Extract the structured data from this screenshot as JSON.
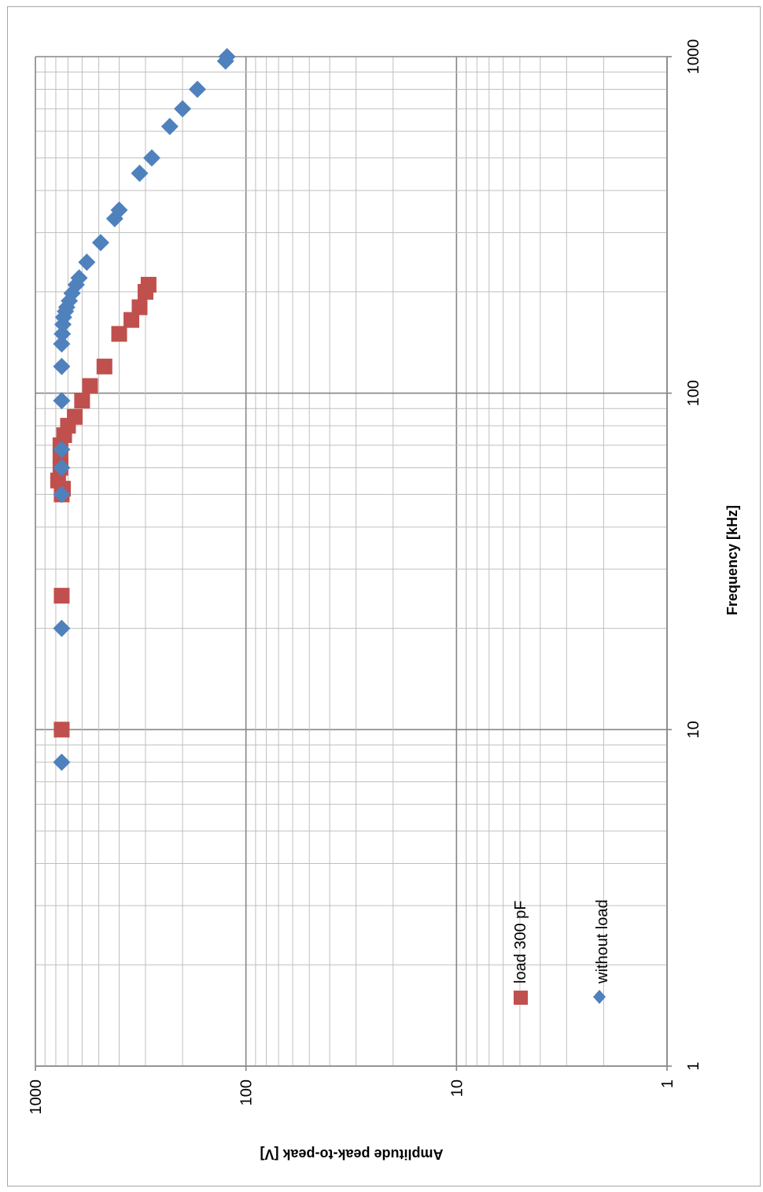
{
  "chart_data": {
    "type": "scatter",
    "orientation": "rotated-90-clockwise",
    "xlabel": "Frequency [kHz]",
    "ylabel": "Amplitude peak-to-peak [V]",
    "x_scale": "log",
    "y_scale": "log",
    "xlim": [
      1,
      1000
    ],
    "ylim": [
      1,
      1000
    ],
    "x_ticks": [
      "1",
      "10",
      "100",
      "1000"
    ],
    "y_ticks": [
      "1000",
      "100",
      "10",
      "1"
    ],
    "grid": true,
    "legend_position": "bottom-left",
    "series": [
      {
        "name": "load 300 pF",
        "marker": "square",
        "color": "#c0504d",
        "points": [
          {
            "x": 10,
            "y": 750
          },
          {
            "x": 25,
            "y": 750
          },
          {
            "x": 50,
            "y": 750
          },
          {
            "x": 52,
            "y": 740
          },
          {
            "x": 55,
            "y": 780
          },
          {
            "x": 60,
            "y": 760
          },
          {
            "x": 65,
            "y": 760
          },
          {
            "x": 70,
            "y": 760
          },
          {
            "x": 75,
            "y": 730
          },
          {
            "x": 80,
            "y": 700
          },
          {
            "x": 85,
            "y": 650
          },
          {
            "x": 95,
            "y": 600
          },
          {
            "x": 105,
            "y": 550
          },
          {
            "x": 120,
            "y": 470
          },
          {
            "x": 150,
            "y": 400
          },
          {
            "x": 165,
            "y": 350
          },
          {
            "x": 180,
            "y": 320
          },
          {
            "x": 200,
            "y": 300
          },
          {
            "x": 210,
            "y": 290
          }
        ]
      },
      {
        "name": "without load",
        "marker": "diamond",
        "color": "#4f81bd",
        "points": [
          {
            "x": 8,
            "y": 750
          },
          {
            "x": 20,
            "y": 750
          },
          {
            "x": 50,
            "y": 750
          },
          {
            "x": 60,
            "y": 750
          },
          {
            "x": 68,
            "y": 750
          },
          {
            "x": 95,
            "y": 750
          },
          {
            "x": 120,
            "y": 750
          },
          {
            "x": 140,
            "y": 750
          },
          {
            "x": 150,
            "y": 745
          },
          {
            "x": 160,
            "y": 740
          },
          {
            "x": 168,
            "y": 735
          },
          {
            "x": 175,
            "y": 720
          },
          {
            "x": 180,
            "y": 710
          },
          {
            "x": 188,
            "y": 690
          },
          {
            "x": 198,
            "y": 670
          },
          {
            "x": 210,
            "y": 640
          },
          {
            "x": 220,
            "y": 620
          },
          {
            "x": 245,
            "y": 570
          },
          {
            "x": 280,
            "y": 490
          },
          {
            "x": 330,
            "y": 420
          },
          {
            "x": 350,
            "y": 400
          },
          {
            "x": 450,
            "y": 320
          },
          {
            "x": 500,
            "y": 280
          },
          {
            "x": 620,
            "y": 230
          },
          {
            "x": 700,
            "y": 200
          },
          {
            "x": 800,
            "y": 170
          },
          {
            "x": 970,
            "y": 125
          },
          {
            "x": 1000,
            "y": 123
          }
        ]
      }
    ]
  }
}
